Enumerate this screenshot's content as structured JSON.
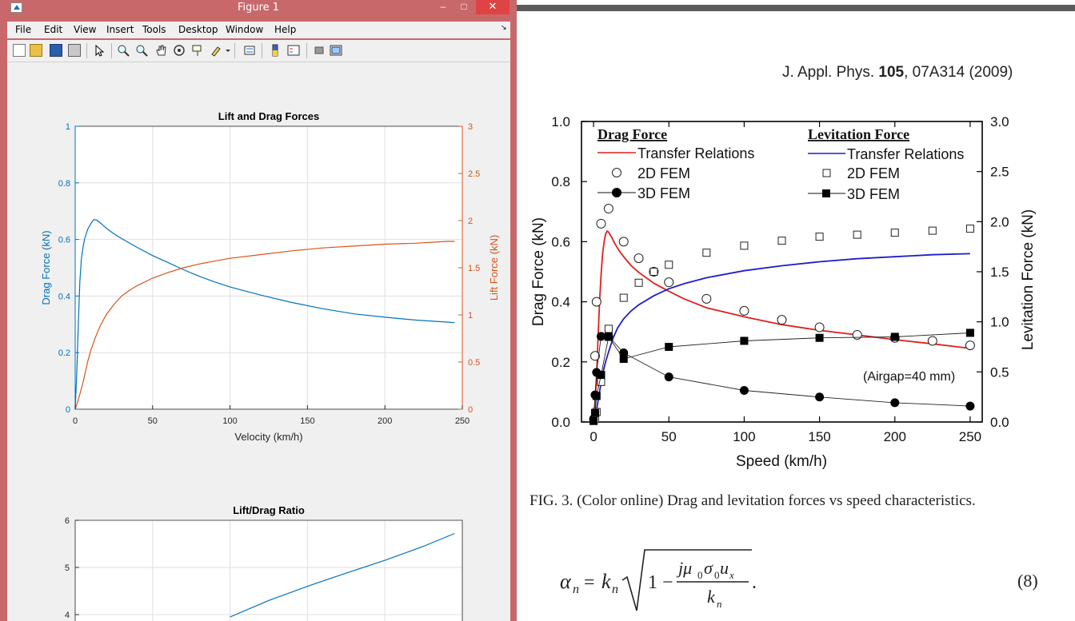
{
  "window": {
    "title": "Figure 1",
    "min_glyph": "–",
    "max_glyph": "□",
    "close_glyph": "✕",
    "pin_glyph": "↘"
  },
  "menu": [
    "File",
    "Edit",
    "View",
    "Insert",
    "Tools",
    "Desktop",
    "Window",
    "Help"
  ],
  "toolbar": {
    "icons": [
      "new-figure-icon",
      "open-file-icon",
      "save-icon",
      "print-icon",
      "pointer-icon",
      "zoom-in-icon",
      "zoom-out-icon",
      "pan-icon",
      "rotate-3d-icon",
      "data-cursor-icon",
      "brush-icon",
      "link-plot-icon",
      "colorbar-icon",
      "legend-icon",
      "hide-plot-tools-icon",
      "show-plot-tools-icon"
    ]
  },
  "colors": {
    "series_blue": "#0072bd",
    "series_orange": "#d95319",
    "paper_red": "#e0201b",
    "paper_blue": "#1e1ec8"
  },
  "matlab_chart1": {
    "title": "Lift and Drag Forces",
    "xlabel": "Velocity (km/h)",
    "ylabel_left": "Drag Force (kN)",
    "ylabel_right": "Lift Force (kN)",
    "x_ticks": [
      "0",
      "50",
      "100",
      "150",
      "200",
      "250"
    ],
    "yl_ticks": [
      "0",
      "0.2",
      "0.4",
      "0.6",
      "0.8",
      "1"
    ],
    "yr_ticks": [
      "0",
      "0.5",
      "1",
      "1.5",
      "2",
      "2.5",
      "3"
    ]
  },
  "matlab_chart2": {
    "title": "Lift/Drag Ratio",
    "y_ticks": [
      "4",
      "5",
      "6"
    ]
  },
  "paper": {
    "journal": "J. Appl. Phys.",
    "volume": "105",
    "article": ", 07A314 (2009)",
    "figure": {
      "xlabel": "Speed (km/h)",
      "ylabel_left": "Drag Force (kN)",
      "ylabel_right": "Levitation Force (kN)",
      "x_ticks": [
        "0",
        "50",
        "100",
        "150",
        "200",
        "250"
      ],
      "yl_ticks": [
        "0.0",
        "0.2",
        "0.4",
        "0.6",
        "0.8",
        "1.0"
      ],
      "yr_ticks": [
        "0.0",
        "0.5",
        "1.0",
        "1.5",
        "2.0",
        "2.5",
        "3.0"
      ],
      "legend_drag_heading": "Drag Force",
      "legend_lev_heading": "Levitation Force",
      "legend_tr": "Transfer Relations",
      "legend_2d": "2D FEM",
      "legend_3d": "3D FEM",
      "annotation": "(Airgap=40 mm)"
    },
    "caption": "FIG. 3. (Color online) Drag and levitation forces vs speed characteristics.",
    "eq_number": "(8)"
  },
  "chart_data": [
    {
      "type": "line",
      "title": "Lift and Drag Forces",
      "xlabel": "Velocity (km/h)",
      "ylabel": "Drag Force (kN)",
      "y2label": "Lift Force (kN)",
      "xlim": [
        0,
        250
      ],
      "ylim": [
        0,
        1
      ],
      "y2lim": [
        0,
        3
      ],
      "grid": true,
      "series": [
        {
          "name": "",
          "axis": "left",
          "color": "#0072bd",
          "x": [
            0,
            1,
            2,
            3,
            4,
            5,
            6,
            8,
            10,
            12,
            14,
            17,
            20,
            25,
            30,
            40,
            50,
            60,
            70,
            80,
            90,
            100,
            120,
            140,
            160,
            180,
            200,
            220,
            240,
            245
          ],
          "y": [
            0,
            0.12,
            0.3,
            0.45,
            0.53,
            0.57,
            0.6,
            0.635,
            0.655,
            0.67,
            0.668,
            0.655,
            0.64,
            0.62,
            0.603,
            0.572,
            0.543,
            0.518,
            0.493,
            0.47,
            0.45,
            0.432,
            0.403,
            0.377,
            0.355,
            0.337,
            0.325,
            0.315,
            0.308,
            0.306
          ]
        },
        {
          "name": "",
          "axis": "right",
          "color": "#d95319",
          "x": [
            0,
            2,
            5,
            8,
            10,
            13,
            16,
            20,
            25,
            30,
            35,
            40,
            50,
            60,
            70,
            80,
            90,
            100,
            120,
            140,
            160,
            180,
            200,
            220,
            240,
            245
          ],
          "y": [
            0,
            0.1,
            0.28,
            0.5,
            0.62,
            0.76,
            0.88,
            1.0,
            1.11,
            1.2,
            1.26,
            1.31,
            1.39,
            1.45,
            1.5,
            1.54,
            1.57,
            1.6,
            1.64,
            1.68,
            1.71,
            1.73,
            1.75,
            1.76,
            1.78,
            1.78
          ]
        }
      ]
    },
    {
      "type": "line",
      "title": "Lift/Drag Ratio",
      "xlim": [
        0,
        250
      ],
      "ylim": [
        3.5,
        6
      ],
      "grid": true,
      "series": [
        {
          "name": "",
          "color": "#0072bd",
          "x": [
            100,
            125,
            150,
            175,
            200,
            225,
            245
          ],
          "y": [
            3.95,
            4.3,
            4.6,
            4.88,
            5.15,
            5.45,
            5.72
          ]
        }
      ]
    },
    {
      "type": "line",
      "xlabel": "Speed (km/h)",
      "ylabel": "Drag Force (kN)",
      "y2label": "Levitation Force (kN)",
      "xlim": [
        -8,
        258
      ],
      "ylim": [
        0,
        1
      ],
      "y2lim": [
        0,
        3
      ],
      "legend": "top",
      "series": [
        {
          "name": "Transfer Relations",
          "group": "Drag Force",
          "axis": "left",
          "color": "#e0201b",
          "x": [
            0,
            1,
            2,
            3,
            4,
            5,
            6,
            7,
            8,
            9,
            10,
            12,
            14,
            17,
            20,
            25,
            30,
            40,
            50,
            60,
            75,
            100,
            125,
            150,
            175,
            200,
            225,
            250
          ],
          "y": [
            0,
            0.06,
            0.15,
            0.28,
            0.4,
            0.49,
            0.56,
            0.6,
            0.625,
            0.635,
            0.632,
            0.615,
            0.595,
            0.57,
            0.55,
            0.52,
            0.498,
            0.462,
            0.435,
            0.41,
            0.38,
            0.35,
            0.324,
            0.305,
            0.29,
            0.274,
            0.26,
            0.245
          ]
        },
        {
          "name": "2D FEM",
          "group": "Drag Force",
          "axis": "left",
          "marker": "open-circle",
          "x": [
            1,
            2,
            5,
            10,
            20,
            30,
            40,
            50,
            75,
            100,
            125,
            150,
            175,
            200,
            225,
            250
          ],
          "y": [
            0.22,
            0.4,
            0.66,
            0.71,
            0.6,
            0.545,
            0.5,
            0.465,
            0.41,
            0.37,
            0.34,
            0.315,
            0.29,
            0.28,
            0.27,
            0.255
          ]
        },
        {
          "name": "3D FEM",
          "group": "Drag Force",
          "axis": "left",
          "marker": "filled-circle",
          "x": [
            0,
            1,
            2,
            5,
            10,
            20,
            50,
            100,
            150,
            200,
            250
          ],
          "y": [
            0.01,
            0.09,
            0.165,
            0.285,
            0.285,
            0.23,
            0.15,
            0.105,
            0.083,
            0.064,
            0.053
          ]
        },
        {
          "name": "Transfer Relations",
          "group": "Levitation Force",
          "axis": "right",
          "color": "#1e1ec8",
          "x": [
            0,
            2,
            4,
            6,
            8,
            10,
            13,
            16,
            20,
            25,
            30,
            40,
            50,
            60,
            75,
            100,
            125,
            150,
            175,
            200,
            225,
            250
          ],
          "y": [
            0,
            0.12,
            0.3,
            0.48,
            0.6,
            0.7,
            0.84,
            0.94,
            1.03,
            1.11,
            1.17,
            1.26,
            1.33,
            1.38,
            1.44,
            1.51,
            1.56,
            1.6,
            1.63,
            1.65,
            1.67,
            1.68
          ]
        },
        {
          "name": "2D FEM",
          "group": "Levitation Force",
          "axis": "right",
          "marker": "open-square",
          "x": [
            1,
            2,
            5,
            10,
            20,
            30,
            40,
            50,
            75,
            100,
            125,
            150,
            175,
            200,
            225,
            250
          ],
          "y": [
            0.03,
            0.1,
            0.4,
            0.93,
            1.24,
            1.39,
            1.5,
            1.57,
            1.69,
            1.76,
            1.81,
            1.85,
            1.87,
            1.89,
            1.91,
            1.93
          ]
        },
        {
          "name": "3D FEM",
          "group": "Levitation Force",
          "axis": "right",
          "marker": "filled-square",
          "x": [
            0,
            1,
            2,
            5,
            10,
            20,
            50,
            100,
            150,
            200,
            250
          ],
          "y": [
            0.01,
            0.09,
            0.26,
            0.47,
            0.85,
            0.63,
            0.75,
            0.81,
            0.84,
            0.85,
            0.89
          ]
        }
      ]
    }
  ]
}
